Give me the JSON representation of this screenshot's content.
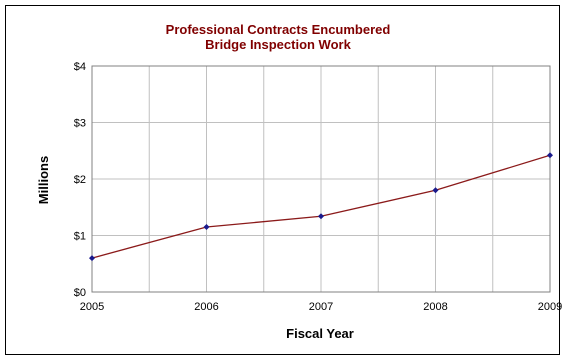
{
  "chart_data": {
    "type": "line",
    "title_lines": [
      "Professional Contracts Encumbered",
      "Bridge Inspection Work"
    ],
    "xlabel": "Fiscal Year",
    "ylabel": "Millions",
    "x": [
      2005,
      2006,
      2007,
      2008,
      2009
    ],
    "x_ticks": [
      "2005",
      "2006",
      "2007",
      "2008",
      "2009"
    ],
    "y_ticks": [
      "$0",
      "$1",
      "$2",
      "$3",
      "$4"
    ],
    "ylim": [
      0,
      4
    ],
    "xlim": [
      2005,
      2009
    ],
    "grid": true,
    "series": [
      {
        "values": [
          0.6,
          1.15,
          1.34,
          1.8,
          2.42
        ]
      }
    ],
    "colors": {
      "line": "#8b1a1a",
      "marker": "#1a1a8c",
      "grid": "#c0c0c0",
      "title": "#800000"
    }
  }
}
